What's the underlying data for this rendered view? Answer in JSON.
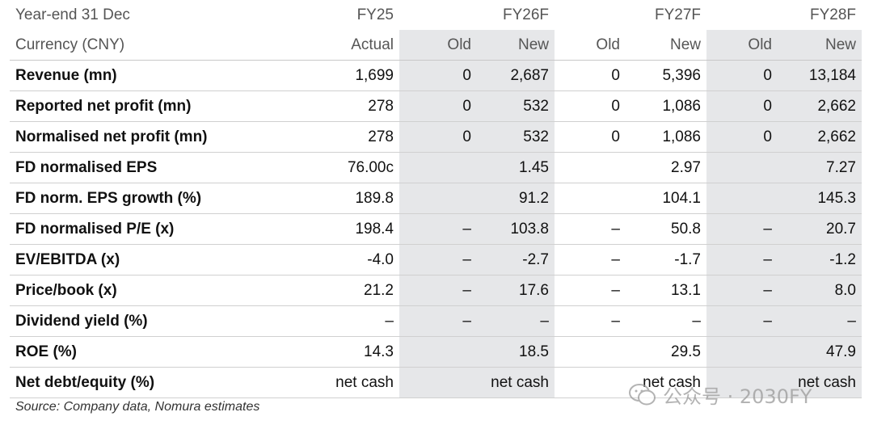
{
  "header": {
    "year_end_label": "Year-end 31 Dec",
    "currency_label": "Currency (CNY)",
    "fy25": "FY25",
    "fy26": "FY26F",
    "fy27": "FY27F",
    "fy28": "FY28F",
    "actual": "Actual",
    "old": "Old",
    "new": "New"
  },
  "rows": [
    {
      "label": "Revenue (mn)",
      "v": [
        "1,699",
        "0",
        "2,687",
        "0",
        "5,396",
        "0",
        "13,184"
      ]
    },
    {
      "label": "Reported net profit (mn)",
      "v": [
        "278",
        "0",
        "532",
        "0",
        "1,086",
        "0",
        "2,662"
      ]
    },
    {
      "label": "Normalised net profit (mn)",
      "v": [
        "278",
        "0",
        "532",
        "0",
        "1,086",
        "0",
        "2,662"
      ]
    },
    {
      "label": "FD normalised EPS",
      "v": [
        "76.00c",
        "",
        "1.45",
        "",
        "2.97",
        "",
        "7.27"
      ]
    },
    {
      "label": "FD norm. EPS growth (%)",
      "v": [
        "189.8",
        "",
        "91.2",
        "",
        "104.1",
        "",
        "145.3"
      ]
    },
    {
      "label": "FD normalised P/E (x)",
      "v": [
        "198.4",
        "–",
        "103.8",
        "–",
        "50.8",
        "–",
        "20.7"
      ]
    },
    {
      "label": "EV/EBITDA (x)",
      "v": [
        "-4.0",
        "–",
        "-2.7",
        "–",
        "-1.7",
        "–",
        "-1.2"
      ]
    },
    {
      "label": "Price/book (x)",
      "v": [
        "21.2",
        "–",
        "17.6",
        "–",
        "13.1",
        "–",
        "8.0"
      ]
    },
    {
      "label": "Dividend yield (%)",
      "v": [
        "–",
        "–",
        "–",
        "–",
        "–",
        "–",
        "–"
      ]
    },
    {
      "label": "ROE (%)",
      "v": [
        "14.3",
        "",
        "18.5",
        "",
        "29.5",
        "",
        "47.9"
      ]
    },
    {
      "label": "Net debt/equity (%)",
      "v": [
        "net cash",
        "",
        "net cash",
        "",
        "net cash",
        "",
        "net cash"
      ]
    }
  ],
  "source": "Source: Company data, Nomura estimates",
  "watermark": {
    "text": "公众号 · 2030FY",
    "icon": "wechat-icon"
  },
  "colors": {
    "shade": "#e6e7e9",
    "text": "#111111",
    "header_text": "#555555"
  }
}
